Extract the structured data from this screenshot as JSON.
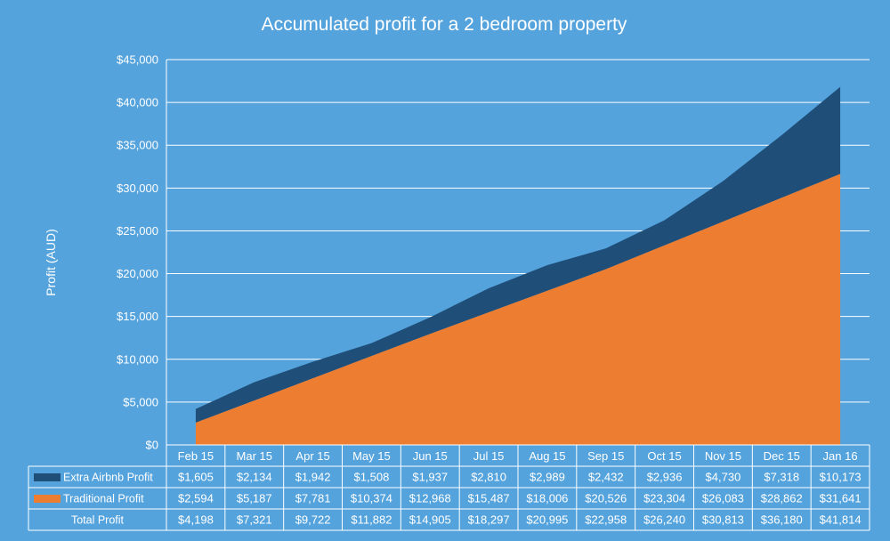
{
  "chart_data": {
    "type": "area",
    "stacked": true,
    "title": "Accumulated profit for a 2 bedroom property",
    "ylabel": "Profit (AUD)",
    "xlabel": "",
    "ylim": [
      0,
      45000
    ],
    "yticks": [
      "$0",
      "$5,000",
      "$10,000",
      "$15,000",
      "$20,000",
      "$25,000",
      "$30,000",
      "$35,000",
      "$40,000",
      "$45,000"
    ],
    "categories": [
      "Feb 15",
      "Mar 15",
      "Apr 15",
      "May 15",
      "Jun 15",
      "Jul 15",
      "Aug 15",
      "Sep 15",
      "Oct 15",
      "Nov 15",
      "Dec 15",
      "Jan 16"
    ],
    "series": [
      {
        "name": "Traditional Profit",
        "color": "#ed7d31",
        "values": [
          2594,
          5187,
          7781,
          10374,
          12968,
          15487,
          18006,
          20526,
          23304,
          26083,
          28862,
          31641
        ],
        "labels": [
          "$2,594",
          "$5,187",
          "$7,781",
          "$10,374",
          "$12,968",
          "$15,487",
          "$18,006",
          "$20,526",
          "$23,304",
          "$26,083",
          "$28,862",
          "$31,641"
        ]
      },
      {
        "name": "Extra Airbnb Profit",
        "color": "#1f4e79",
        "values": [
          1605,
          2134,
          1942,
          1508,
          1937,
          2810,
          2989,
          2432,
          2936,
          4730,
          7318,
          10173
        ],
        "labels": [
          "$1,605",
          "$2,134",
          "$1,942",
          "$1,508",
          "$1,937",
          "$2,810",
          "$2,989",
          "$2,432",
          "$2,936",
          "$4,730",
          "$7,318",
          "$10,173"
        ]
      }
    ],
    "total": {
      "name": "Total Profit",
      "values": [
        4198,
        7321,
        9722,
        11882,
        14905,
        18297,
        20995,
        22958,
        26240,
        30813,
        36180,
        41814
      ],
      "labels": [
        "$4,198",
        "$7,321",
        "$9,722",
        "$11,882",
        "$14,905",
        "$18,297",
        "$20,995",
        "$22,958",
        "$26,240",
        "$30,813",
        "$36,180",
        "$41,814"
      ]
    },
    "table_rows": [
      "Extra Airbnb Profit",
      "Traditional Profit",
      "Total Profit"
    ],
    "grid": true,
    "legend": "data-table"
  }
}
